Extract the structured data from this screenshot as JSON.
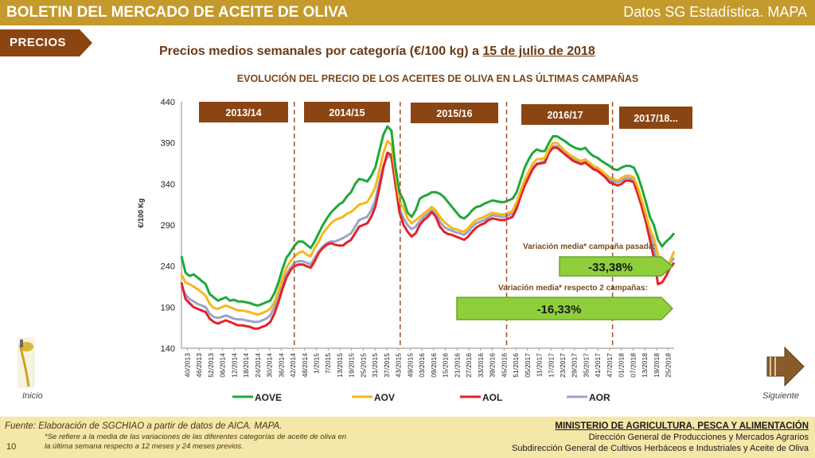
{
  "header": {
    "title": "BOLETIN DEL MERCADO DE ACEITE DE OLIVA",
    "source": "Datos SG Estadística. MAPA"
  },
  "section_tag": "PRECIOS",
  "subtitle": {
    "prefix": "Precios medios semanales por categoría (€/100 kg) a ",
    "date": "15 de julio de 2018"
  },
  "chart_data": {
    "type": "line",
    "title": "EVOLUCIÓN DEL PRECIO DE LOS ACEITES DE OLIVA EN LAS ÚLTIMAS CAMPAÑAS",
    "ylabel": "€/100 Kg",
    "xlabel": "",
    "ylim": [
      140,
      440
    ],
    "yticks": [
      140,
      190,
      240,
      290,
      340,
      390,
      440
    ],
    "x_tick_labels": [
      "40/2013",
      "46/2013",
      "52/2013",
      "06/2014",
      "12/2014",
      "18/2014",
      "24/2014",
      "30/2014",
      "36/2014",
      "42/2014",
      "48/2014",
      "1/2015",
      "7/2015",
      "13/2015",
      "19/2015",
      "25/2015",
      "31/2015",
      "37/2015",
      "43/2015",
      "49/2015",
      "03/2016",
      "09/2016",
      "15/2016",
      "21/2016",
      "27/2016",
      "33/2016",
      "39/2016",
      "45/2016",
      "51/2016",
      "05/2017",
      "11/2017",
      "17/2017",
      "23/2017",
      "29/2017",
      "35/2017",
      "41/2017",
      "47/2017",
      "01/2018",
      "07/2018",
      "13/2018",
      "19/2018",
      "25/2018"
    ],
    "campaigns": [
      "2013/14",
      "2014/15",
      "2015/16",
      "2016/17",
      "2017/18..."
    ],
    "grid": false,
    "legend_position": "bottom",
    "series": [
      {
        "name": "AOVE",
        "color": "#1fa83a",
        "values": [
          252,
          232,
          228,
          230,
          226,
          222,
          218,
          206,
          202,
          198,
          200,
          202,
          198,
          199,
          197,
          197,
          196,
          195,
          193,
          192,
          194,
          196,
          198,
          207,
          220,
          236,
          250,
          257,
          265,
          270,
          270,
          266,
          262,
          270,
          280,
          290,
          298,
          305,
          310,
          315,
          318,
          325,
          330,
          340,
          346,
          345,
          343,
          350,
          360,
          380,
          400,
          410,
          405,
          360,
          330,
          320,
          305,
          300,
          308,
          322,
          325,
          327,
          330,
          330,
          328,
          324,
          318,
          312,
          306,
          300,
          298,
          302,
          308,
          312,
          313,
          316,
          318,
          320,
          319,
          318,
          318,
          320,
          322,
          330,
          345,
          360,
          370,
          378,
          382,
          380,
          380,
          390,
          398,
          398,
          395,
          392,
          388,
          385,
          383,
          382,
          384,
          378,
          374,
          372,
          368,
          365,
          362,
          358,
          357,
          360,
          362,
          362,
          360,
          350,
          335,
          318,
          300,
          290,
          272,
          264,
          270,
          274,
          280
        ]
      },
      {
        "name": "AOV",
        "color": "#f5b81c",
        "values": [
          230,
          220,
          218,
          215,
          212,
          208,
          204,
          194,
          189,
          188,
          190,
          192,
          190,
          188,
          186,
          186,
          185,
          184,
          182,
          181,
          183,
          185,
          188,
          196,
          210,
          225,
          238,
          246,
          252,
          256,
          258,
          254,
          252,
          262,
          270,
          280,
          286,
          292,
          296,
          298,
          300,
          304,
          306,
          310,
          315,
          316,
          318,
          326,
          336,
          356,
          378,
          392,
          388,
          352,
          320,
          310,
          298,
          292,
          296,
          300,
          304,
          308,
          312,
          308,
          300,
          294,
          290,
          286,
          285,
          283,
          282,
          286,
          292,
          296,
          298,
          300,
          303,
          305,
          304,
          303,
          303,
          305,
          307,
          318,
          332,
          345,
          355,
          365,
          370,
          370,
          372,
          382,
          390,
          390,
          385,
          380,
          376,
          373,
          370,
          368,
          370,
          366,
          362,
          360,
          356,
          352,
          348,
          346,
          344,
          347,
          350,
          350,
          348,
          336,
          320,
          303,
          285,
          274,
          254,
          245,
          240,
          246,
          258
        ]
      },
      {
        "name": "AOL",
        "color": "#e3222a",
        "values": [
          220,
          200,
          195,
          190,
          188,
          186,
          184,
          176,
          172,
          170,
          172,
          174,
          172,
          170,
          168,
          168,
          167,
          166,
          164,
          164,
          166,
          168,
          172,
          182,
          196,
          212,
          226,
          235,
          240,
          242,
          242,
          240,
          238,
          246,
          256,
          262,
          266,
          268,
          266,
          265,
          265,
          269,
          272,
          280,
          288,
          290,
          292,
          300,
          312,
          335,
          360,
          378,
          375,
          340,
          305,
          290,
          282,
          276,
          280,
          290,
          296,
          300,
          306,
          300,
          288,
          282,
          279,
          278,
          276,
          274,
          272,
          276,
          282,
          287,
          290,
          292,
          296,
          298,
          297,
          296,
          296,
          298,
          300,
          310,
          325,
          338,
          348,
          358,
          364,
          365,
          366,
          378,
          384,
          384,
          380,
          376,
          372,
          368,
          366,
          364,
          366,
          362,
          358,
          356,
          352,
          348,
          342,
          340,
          338,
          340,
          344,
          344,
          342,
          328,
          312,
          294,
          272,
          250,
          218,
          220,
          228,
          238,
          244
        ]
      },
      {
        "name": "AOR",
        "color": "#9ba3c8",
        "values": [
          215,
          205,
          200,
          197,
          194,
          192,
          190,
          182,
          178,
          177,
          178,
          180,
          178,
          176,
          175,
          175,
          174,
          173,
          172,
          172,
          174,
          176,
          180,
          190,
          204,
          218,
          230,
          238,
          244,
          246,
          246,
          244,
          242,
          250,
          258,
          264,
          268,
          270,
          270,
          272,
          274,
          277,
          280,
          288,
          296,
          298,
          300,
          308,
          320,
          342,
          362,
          374,
          372,
          338,
          310,
          298,
          290,
          285,
          288,
          295,
          300,
          304,
          308,
          304,
          294,
          288,
          285,
          283,
          281,
          280,
          278,
          282,
          288,
          292,
          294,
          296,
          299,
          302,
          301,
          300,
          300,
          302,
          304,
          314,
          328,
          340,
          350,
          360,
          365,
          366,
          368,
          378,
          386,
          386,
          382,
          378,
          374,
          370,
          368,
          366,
          368,
          364,
          360,
          358,
          354,
          350,
          345,
          343,
          342,
          344,
          347,
          347,
          345,
          332,
          318,
          300,
          280,
          262,
          240,
          236,
          238,
          244,
          250
        ]
      }
    ],
    "annotations": [
      {
        "label": "Variación media* campaña pasada:",
        "value": "-33,38%"
      },
      {
        "label": "Variación media*  respecto 2 campañas:",
        "value": "-16,33%"
      }
    ]
  },
  "nav": {
    "home_label": "Inicio",
    "next_label": "Siguiente"
  },
  "footer": {
    "source": "Fuente: Elaboración de SGCHIAO a partir de datos de AICA. MAPA.",
    "note": "*Se refiere a la media de las variaciones de las diferentes categorías de aceite de oliva en la última semana respecto a 12 meses y 24 meses previos.",
    "page": "10",
    "ministry": "MINISTERIO DE AGRICULTURA, PESCA Y ALIMENTACIÓN",
    "direction": "Dirección General de Producciones y Mercados Agrarios",
    "subdirection": "Subdirección General de Cultivos Herbáceos e Industriales y Aceite de Oliva"
  },
  "colors": {
    "header_bar": "#c49a2c",
    "tag": "#8b4513",
    "campaign_box": "#8b4513",
    "arrow_fill": "#8fcf3c",
    "footer_bar": "#f5e7a8"
  }
}
